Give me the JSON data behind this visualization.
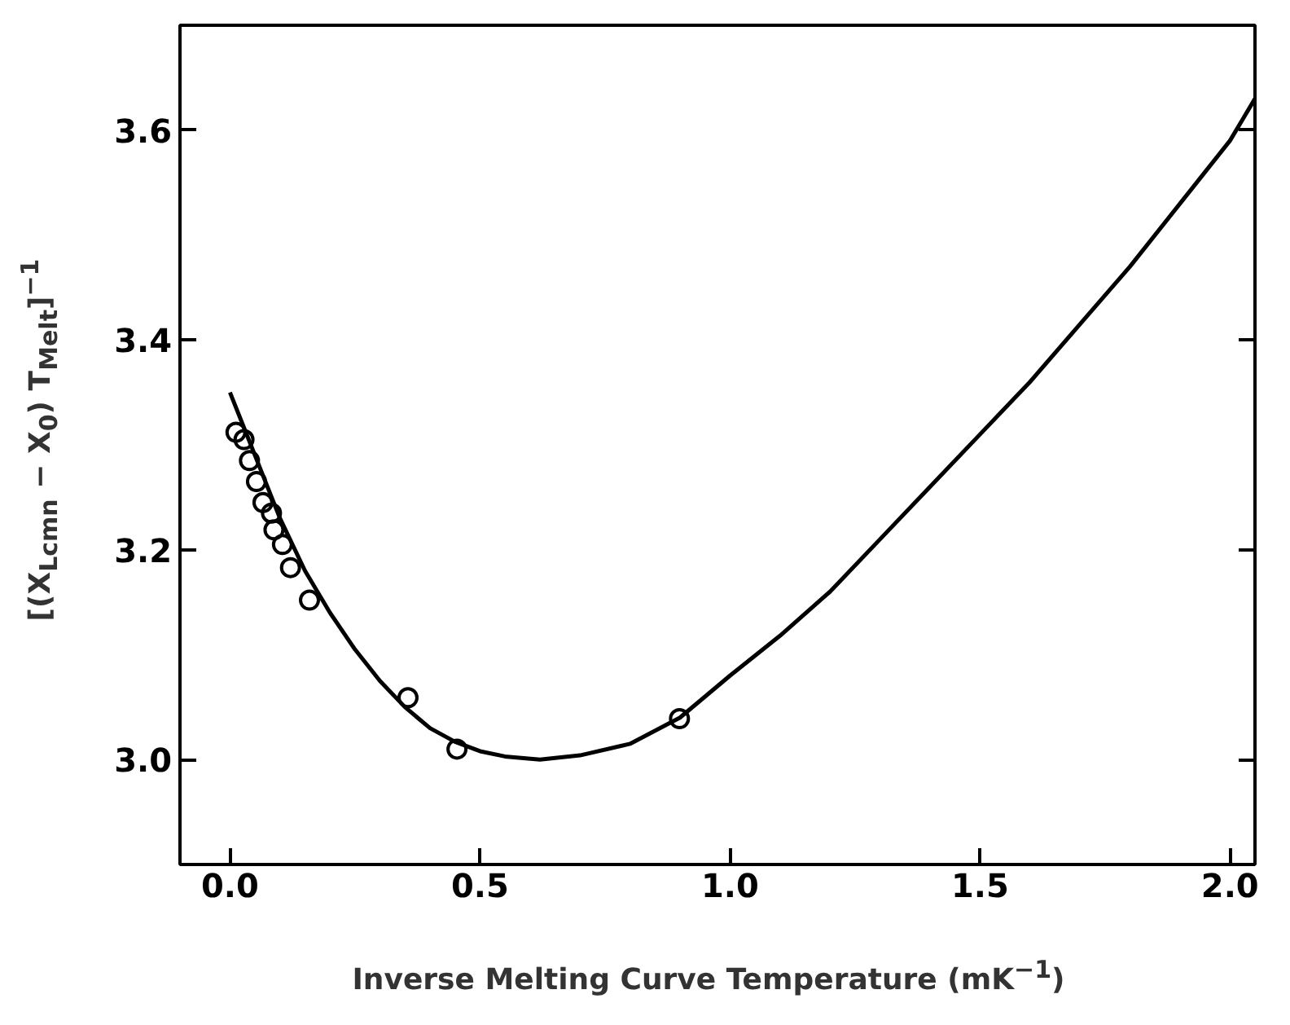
{
  "chart_data": {
    "type": "scatter",
    "xlabel": "Inverse Melting Curve Temperature (mK$^{−1}$)",
    "ylabel": "[(X$_{Lcmn}$ − X$_{0}$) T$_{Melt}$]$^{−1}$",
    "xlim": [
      -0.1,
      2.05
    ],
    "ylim": [
      2.9,
      3.7
    ],
    "xticks": [
      {
        "value": 0,
        "label": "0.0"
      },
      0.5,
      {
        "value": 1,
        "label": "1.0"
      },
      1.5,
      {
        "value": 2,
        "label": "2.0"
      }
    ],
    "yticks": [
      {
        "value": 3,
        "label": "3.0"
      },
      3.2,
      3.4,
      3.6
    ],
    "grid": false,
    "marker": "circle",
    "series": [
      {
        "color": "#000000",
        "x": [
          0.012,
          0.028,
          0.039,
          0.053,
          0.066,
          0.083,
          0.088,
          0.105,
          0.121,
          0.159,
          0.356,
          0.454,
          0.899
        ],
        "values": [
          3.312,
          3.305,
          3.285,
          3.265,
          3.245,
          3.235,
          3.219,
          3.205,
          3.183,
          3.152,
          3.059,
          3.01,
          3.039
        ]
      },
      {
        "type": "line",
        "color": "#000000",
        "marker": "none",
        "line_style": "solid",
        "x": [
          0,
          0.05,
          0.1,
          0.15,
          0.2,
          0.25,
          0.3,
          0.35,
          0.4,
          0.45,
          0.5,
          0.55,
          0.62,
          0.7,
          0.8,
          0.9,
          1.0,
          1.1,
          1.2,
          1.3,
          1.4,
          1.5,
          1.6,
          1.7,
          1.8,
          1.9,
          2.0,
          2.05
        ],
        "values": [
          3.35,
          3.29,
          3.23,
          3.18,
          3.14,
          3.105,
          3.075,
          3.05,
          3.03,
          3.017,
          3.008,
          3.003,
          3.0,
          3.004,
          3.015,
          3.04,
          3.08,
          3.118,
          3.16,
          3.21,
          3.26,
          3.31,
          3.36,
          3.415,
          3.47,
          3.53,
          3.59,
          3.63
        ]
      }
    ]
  }
}
